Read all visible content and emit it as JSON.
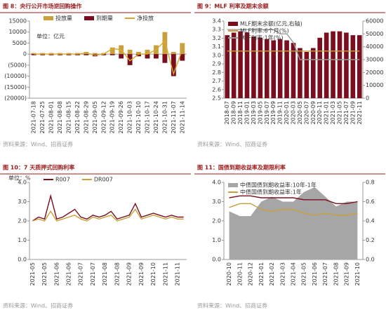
{
  "chart_data": [
    {
      "type": "bar",
      "title": "图 8：央行公开市场逆回购操作",
      "source": "资料来源：Wind、招商证券",
      "unit_label": "单位：亿元",
      "legend": "top",
      "grid": false,
      "categories": [
        "2021-07-18",
        "2021-07-25",
        "2021-08-01",
        "2021-08-08",
        "2021-08-15",
        "2021-08-22",
        "2021-08-29",
        "2021-09-05",
        "2021-09-12",
        "2021-09-19",
        "2021-09-26",
        "2021-10-03",
        "2021-10-10",
        "2021-10-17",
        "2021-10-24",
        "2021-10-31",
        "2021-11-07",
        "2021-11-14"
      ],
      "ylim": [
        -20000,
        15000
      ],
      "yticks": [
        15000,
        10000,
        5000,
        0,
        {
          "value": -5000,
          "label": "(5000)"
        },
        {
          "value": -10000,
          "label": "(10000)"
        },
        {
          "value": -15000,
          "label": "(15000)"
        },
        {
          "value": -20000,
          "label": "(20000)"
        }
      ],
      "series": [
        {
          "name": "投放量",
          "type": "bar",
          "color": "#c9a03c",
          "values": [
            500,
            500,
            500,
            500,
            500,
            500,
            1000,
            500,
            500,
            3000,
            4000,
            2000,
            1000,
            2000,
            4000,
            10000,
            1000,
            5000
          ]
        },
        {
          "name": "到期量",
          "type": "bar",
          "color": "#7a0e1e",
          "values": [
            -500,
            -500,
            -500,
            -500,
            -500,
            -500,
            -500,
            -1000,
            -500,
            -500,
            -2000,
            -5000,
            -1000,
            -2000,
            -2000,
            -4000,
            -10000,
            -3000
          ]
        },
        {
          "name": "净投放",
          "type": "line",
          "color": "#d9a82a",
          "values": [
            0,
            0,
            0,
            0,
            0,
            0,
            500,
            -500,
            0,
            2500,
            2000,
            -3000,
            0,
            0,
            2000,
            6000,
            -9000,
            2000
          ]
        }
      ]
    },
    {
      "type": "bar",
      "title": "图 9：MLF 利率及期末余额",
      "source": "资料来源：Wind、招商证券",
      "legend": "upper left",
      "grid": false,
      "categories": [
        "2018-07",
        "2018-09",
        "2018-11",
        "2019-01",
        "2019-03",
        "2019-05",
        "2019-07",
        "2019-09",
        "2019-11",
        "2020-01",
        "2020-03",
        "2020-05",
        "2020-07",
        "2020-09",
        "2020-11",
        "2021-01",
        "2021-03",
        "2021-05",
        "2021-07",
        "2021-09",
        "2021-11"
      ],
      "ylim": [
        2.5,
        3.4
      ],
      "yticks": [
        2.5,
        2.6,
        2.7,
        2.8,
        2.9,
        {
          "value": 3,
          "label": "3.0"
        },
        3.1,
        3.2,
        3.3,
        3.4
      ],
      "y2lim": [
        0,
        60000
      ],
      "y2ticks": [
        0,
        10000,
        20000,
        30000,
        40000,
        50000,
        60000
      ],
      "series": [
        {
          "name": "MLF期末余额(亿元,右轴)",
          "type": "bar",
          "axis": "y2",
          "color": "#7a0e1e",
          "values": [
            49000,
            51000,
            52000,
            51000,
            48000,
            47000,
            46000,
            45000,
            46000,
            45000,
            43000,
            39000,
            36000,
            39000,
            47000,
            51000,
            52000,
            52000,
            51000,
            49000,
            49000
          ]
        },
        {
          "name": "MLF利率:6个月(%)",
          "type": "line",
          "color": "#c9a03c",
          "values": [
            3.05,
            3.05,
            3.05,
            3.05,
            3.05,
            3.05,
            3.05,
            3.05,
            3.05,
            3.05,
            3.05,
            3.05,
            3.05,
            3.05,
            3.05,
            3.05,
            3.05,
            3.05,
            3.05,
            3.05,
            3.05
          ]
        },
        {
          "name": "MLF利率:1年(%)",
          "type": "line",
          "color": "#9a9a9a",
          "values": [
            3.3,
            3.3,
            3.3,
            3.3,
            3.3,
            3.3,
            3.3,
            3.3,
            3.25,
            3.25,
            3.15,
            2.95,
            2.95,
            2.95,
            2.95,
            2.95,
            2.95,
            2.95,
            2.95,
            2.95,
            2.95
          ]
        }
      ]
    },
    {
      "type": "line",
      "title": "图 10：7 天质押式回购利率",
      "source": "资料来源：Wind、招商证券",
      "unit_label": "单位：%",
      "legend": "top",
      "grid": false,
      "categories": [
        "2021-05",
        null,
        "2021-05",
        null,
        "2021-06",
        null,
        "2021-06",
        null,
        "2021-07",
        null,
        "2021-07",
        null,
        "2021-08",
        null,
        "2021-08",
        null,
        "2021-09",
        null,
        "2021-09",
        null,
        "2021-10",
        null,
        "2021-11",
        null,
        "2021-11",
        null
      ],
      "ylim": [
        0,
        4
      ],
      "yticks": [
        {
          "value": 0,
          "label": "0.0"
        },
        {
          "value": 1,
          "label": "1.0"
        },
        {
          "value": 2,
          "label": "2.0"
        },
        {
          "value": 3,
          "label": "3.0"
        },
        {
          "value": 4,
          "label": "4.0"
        }
      ],
      "series": [
        {
          "name": "R007",
          "type": "line",
          "color": "#7a0e1e",
          "values": [
            2.0,
            2.2,
            2.1,
            3.3,
            2.1,
            2.2,
            2.4,
            2.6,
            2.2,
            2.1,
            2.3,
            2.2,
            2.3,
            2.5,
            2.1,
            2.2,
            2.3,
            2.9,
            2.2,
            2.3,
            2.4,
            2.3,
            2.2,
            2.3,
            2.2,
            2.2
          ]
        },
        {
          "name": "DR007",
          "type": "line",
          "color": "#c9a03c",
          "values": [
            2.0,
            2.1,
            2.0,
            2.5,
            2.0,
            2.1,
            2.2,
            2.3,
            2.1,
            2.0,
            2.2,
            2.1,
            2.2,
            2.3,
            2.0,
            2.1,
            2.2,
            2.6,
            2.1,
            2.2,
            2.3,
            2.2,
            2.1,
            2.2,
            2.1,
            2.1
          ]
        }
      ]
    },
    {
      "type": "area",
      "title": "图 11：国债到期收益率及期限利率",
      "source": "资料来源：Wind、招商证券",
      "legend": "upper left",
      "grid": false,
      "categories": [
        "2020-10",
        "2020-11",
        "2020-12",
        "2021-01",
        "2021-02",
        "2021-03",
        "2021-04",
        "2021-05",
        "2021-06",
        "2021-07",
        "2021-08",
        "2021-09",
        "2021-10"
      ],
      "ylim": [
        0,
        4
      ],
      "yticks": [
        {
          "value": 0,
          "label": "0.0"
        },
        {
          "value": 1,
          "label": "1.0"
        },
        {
          "value": 2,
          "label": "2.0"
        },
        {
          "value": 3,
          "label": "3.0"
        },
        {
          "value": 4,
          "label": "4.0"
        }
      ],
      "y2lim": [
        0,
        0.8
      ],
      "y2ticks": [
        {
          "value": 0,
          "label": "0.0"
        },
        0.2,
        0.4,
        0.6,
        0.8
      ],
      "series": [
        {
          "name": "中债国债到期收益率:10年-1年",
          "type": "area",
          "axis": "y2",
          "color": "#a6a6a6",
          "values": [
            0.5,
            0.45,
            0.45,
            0.6,
            0.65,
            0.6,
            0.6,
            0.7,
            0.75,
            0.65,
            0.55,
            0.6,
            0.6
          ]
        },
        {
          "name": "中债国债到期收益率:1年",
          "type": "line",
          "color": "#c9a03c",
          "values": [
            2.7,
            2.9,
            2.9,
            2.6,
            2.5,
            2.6,
            2.6,
            2.4,
            2.3,
            2.4,
            2.3,
            2.3,
            2.4
          ]
        },
        {
          "type": "line",
          "color": "#7a0e1e",
          "values": [
            3.2,
            3.3,
            3.3,
            3.2,
            3.2,
            3.2,
            3.2,
            3.1,
            3.1,
            3.1,
            2.9,
            2.9,
            3.0
          ]
        }
      ]
    }
  ]
}
